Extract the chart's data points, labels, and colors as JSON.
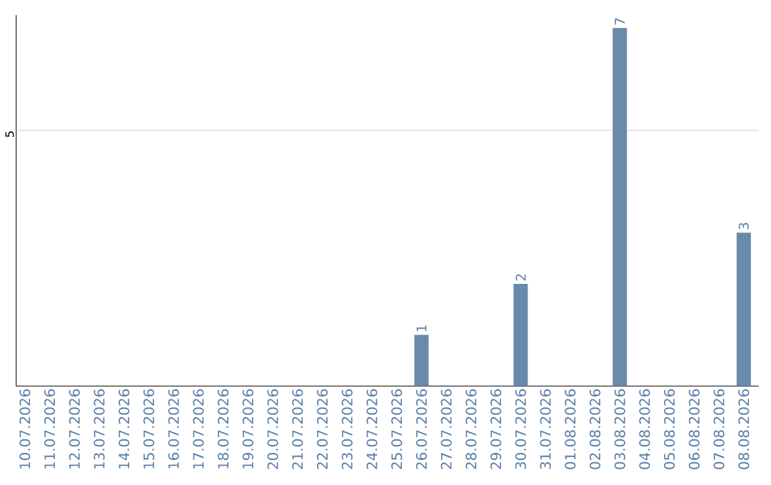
{
  "chart_data": {
    "type": "bar",
    "categories": [
      "10.07.2026",
      "11.07.2026",
      "12.07.2026",
      "13.07.2026",
      "14.07.2026",
      "15.07.2026",
      "16.07.2026",
      "17.07.2026",
      "18.07.2026",
      "19.07.2026",
      "20.07.2026",
      "21.07.2026",
      "22.07.2026",
      "23.07.2026",
      "24.07.2026",
      "25.07.2026",
      "26.07.2026",
      "27.07.2026",
      "28.07.2026",
      "29.07.2026",
      "30.07.2026",
      "31.07.2026",
      "01.08.2026",
      "02.08.2026",
      "03.08.2026",
      "04.08.2026",
      "05.08.2026",
      "06.08.2026",
      "07.08.2026",
      "08.08.2026"
    ],
    "values": [
      null,
      null,
      null,
      null,
      null,
      null,
      null,
      null,
      null,
      null,
      null,
      null,
      null,
      null,
      null,
      null,
      1,
      null,
      null,
      null,
      2,
      null,
      null,
      null,
      7,
      null,
      null,
      null,
      null,
      3
    ],
    "data_labels": true,
    "color": "#6a8aab",
    "ylim": [
      0,
      7.25
    ],
    "ref_lines": [
      {
        "axis": "y",
        "value": 5,
        "label": "5",
        "color": "#cccccc"
      }
    ]
  }
}
